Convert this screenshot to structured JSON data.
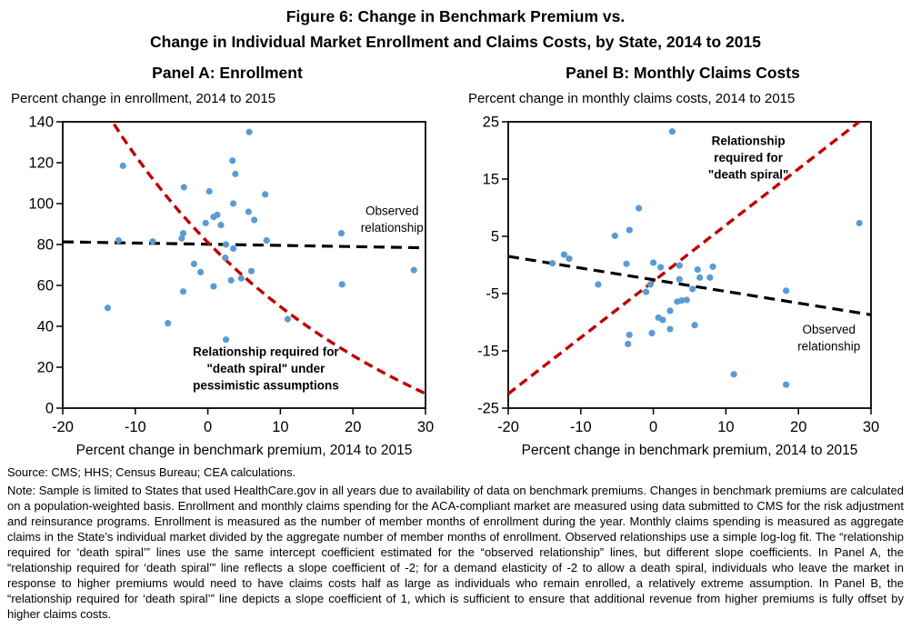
{
  "figure": {
    "title_line1": "Figure 6: Change in Benchmark Premium vs.",
    "title_line2": "Change in Individual Market Enrollment and Claims Costs, by State, 2014 to 2015",
    "source": "Source: CMS; HHS; Census Bureau; CEA calculations.",
    "note": "Note: Sample is limited to States that used HealthCare.gov in all years due to availability of data on benchmark premiums. Changes in benchmark premiums are calculated on a population-weighted basis. Enrollment and monthly claims spending for the ACA-compliant market are measured using data submitted to CMS for the risk adjustment and reinsurance programs. Enrollment is measured as the number of member months of enrollment during the year. Monthly claims spending is measured as aggregate claims in the State’s individual market divided by the aggregate number of member months of enrollment. Observed relationships use a simple log-log fit. The “relationship required for ‘death spiral’” lines use the same intercept coefficient estimated for the “observed relationship” lines, but different slope coefficients. In Panel A, the “relationship required for ‘death spiral’” line reflects a slope coefficient of -2; for a demand elasticity of -2 to allow a death spiral, individuals who leave the market in response to higher premiums would need to have claims costs half as large as individuals who remain enrolled, a relatively extreme assumption. In Panel B, the “relationship required for ‘death spiral’” line depicts a slope coefficient of 1, which is sufficient to ensure that additional revenue from higher premiums is fully offset by higher claims costs."
  },
  "colors": {
    "dot": "#5B9BD5",
    "red": "#C00000",
    "black": "#000000"
  },
  "chart_data": [
    {
      "panel": "A",
      "type": "scatter",
      "title": "Panel A: Enrollment",
      "y_units_label": "Percent change in enrollment, 2014 to 2015",
      "xlabel": "Percent change in benchmark premium, 2014 to 2015",
      "xlim": [
        -20,
        30
      ],
      "ylim": [
        0,
        140
      ],
      "xticks": [
        -20,
        -10,
        0,
        10,
        20,
        30
      ],
      "yticks": [
        0,
        20,
        40,
        60,
        80,
        100,
        120,
        140
      ],
      "points": [
        [
          5.7,
          135
        ],
        [
          3.4,
          121
        ],
        [
          -11.7,
          118.5
        ],
        [
          3.8,
          114.5
        ],
        [
          -3.3,
          108
        ],
        [
          0.2,
          106
        ],
        [
          7.9,
          104.5
        ],
        [
          3.5,
          100
        ],
        [
          5.6,
          96
        ],
        [
          0.8,
          93.5
        ],
        [
          1.3,
          94.5
        ],
        [
          6.4,
          92
        ],
        [
          -0.3,
          90.5
        ],
        [
          1.8,
          89.5
        ],
        [
          18.4,
          85.5
        ],
        [
          -3.4,
          85.5
        ],
        [
          -3.6,
          83
        ],
        [
          -12.3,
          82
        ],
        [
          -7.6,
          81.5
        ],
        [
          8.1,
          82
        ],
        [
          2.5,
          80
        ],
        [
          3.5,
          78
        ],
        [
          2.4,
          73.5
        ],
        [
          -1.9,
          70.5
        ],
        [
          6.0,
          67
        ],
        [
          28.4,
          67.5
        ],
        [
          -1.0,
          66.5
        ],
        [
          4.6,
          63.5
        ],
        [
          3.2,
          62.5
        ],
        [
          0.8,
          59.5
        ],
        [
          18.5,
          60.5
        ],
        [
          -3.4,
          57
        ],
        [
          -13.8,
          49
        ],
        [
          -5.5,
          41.5
        ],
        [
          11.0,
          43.5
        ],
        [
          2.5,
          33.5
        ]
      ],
      "lines": [
        {
          "name": "observed-relationship-line",
          "color": "black",
          "width": 3.2,
          "dash": [
            12,
            7
          ],
          "points": [
            [
              -20,
              81.3
            ],
            [
              30,
              78.4
            ]
          ]
        },
        {
          "name": "death-spiral-line",
          "color": "red",
          "width": 3.4,
          "dash": [
            10,
            6
          ],
          "points": [
            [
              -14,
              144.9
            ],
            [
              -12,
              133.7
            ],
            [
              -10,
              123.5
            ],
            [
              -8,
              113.9
            ],
            [
              -6,
              104.9
            ],
            [
              -4,
              96.4
            ],
            [
              -2,
              88.5
            ],
            [
              0,
              81.0
            ],
            [
              2,
              74.0
            ],
            [
              4,
              67.4
            ],
            [
              6,
              61.1
            ],
            [
              8,
              55.2
            ],
            [
              10,
              49.6
            ],
            [
              12,
              44.3
            ],
            [
              14,
              39.3
            ],
            [
              16,
              34.5
            ],
            [
              18,
              30.0
            ],
            [
              20,
              25.7
            ],
            [
              22,
              21.6
            ],
            [
              24,
              17.7
            ],
            [
              26,
              14.0
            ],
            [
              28,
              10.5
            ],
            [
              30,
              7.1
            ]
          ]
        }
      ],
      "annotations": [
        {
          "name": "observed-relationship-label",
          "color": "black",
          "bold": false,
          "x": 25.4,
          "y": 96.5,
          "lines": [
            "Observed",
            "relationship"
          ]
        },
        {
          "name": "death-spiral-label",
          "color": "red",
          "bold": true,
          "x": 8.0,
          "y": 27.5,
          "lines": [
            "Relationship required for",
            "\"death spiral\" under",
            "pessimistic assumptions"
          ]
        }
      ]
    },
    {
      "panel": "B",
      "type": "scatter",
      "title": "Panel B: Monthly Claims Costs",
      "y_units_label": "Percent change in monthly claims costs, 2014 to 2015",
      "xlabel": "Percent change in benchmark premium, 2014 to 2015",
      "xlim": [
        -20,
        30
      ],
      "ylim": [
        -25,
        25
      ],
      "xticks": [
        -20,
        -10,
        0,
        10,
        20,
        30
      ],
      "yticks": [
        -25,
        -15,
        -5,
        5,
        15,
        25
      ],
      "points": [
        [
          2.6,
          23.3
        ],
        [
          -2.0,
          9.9
        ],
        [
          28.4,
          7.3
        ],
        [
          -3.3,
          6.1
        ],
        [
          -5.3,
          5.1
        ],
        [
          -12.3,
          1.8
        ],
        [
          -11.6,
          1.1
        ],
        [
          -13.9,
          0.3
        ],
        [
          -3.7,
          0.2
        ],
        [
          0.0,
          0.4
        ],
        [
          1.0,
          -0.4
        ],
        [
          3.6,
          -0.1
        ],
        [
          6.1,
          -0.8
        ],
        [
          8.2,
          -0.3
        ],
        [
          -7.6,
          -3.4
        ],
        [
          3.6,
          -2.5
        ],
        [
          6.4,
          -2.2
        ],
        [
          7.8,
          -2.2
        ],
        [
          -0.4,
          -3.4
        ],
        [
          -1.0,
          -4.7
        ],
        [
          5.4,
          -4.2
        ],
        [
          18.3,
          -4.5
        ],
        [
          4.6,
          -6.1
        ],
        [
          3.9,
          -6.2
        ],
        [
          3.3,
          -6.4
        ],
        [
          2.3,
          -8.0
        ],
        [
          0.7,
          -9.2
        ],
        [
          1.3,
          -9.6
        ],
        [
          5.7,
          -10.5
        ],
        [
          2.3,
          -11.2
        ],
        [
          -0.2,
          -11.9
        ],
        [
          -3.3,
          -12.2
        ],
        [
          -3.5,
          -13.8
        ],
        [
          11.1,
          -19.1
        ],
        [
          18.3,
          -20.9
        ]
      ],
      "lines": [
        {
          "name": "observed-relationship-line",
          "color": "black",
          "width": 3.2,
          "dash": [
            12,
            7
          ],
          "points": [
            [
              -20,
              1.5
            ],
            [
              30,
              -8.7
            ]
          ]
        },
        {
          "name": "death-spiral-line",
          "color": "red",
          "width": 3.4,
          "dash": [
            10,
            6
          ],
          "points": [
            [
              -20,
              -22.5
            ],
            [
              30,
              26.6
            ]
          ]
        }
      ],
      "annotations": [
        {
          "name": "death-spiral-label",
          "color": "red",
          "bold": true,
          "x": 13.1,
          "y": 21.7,
          "lines": [
            "Relationship",
            "required for",
            "\"death spiral\""
          ]
        },
        {
          "name": "observed-relationship-label",
          "color": "black",
          "bold": false,
          "x": 24.2,
          "y": -11.3,
          "lines": [
            "Observed",
            "relationship"
          ]
        }
      ]
    }
  ]
}
